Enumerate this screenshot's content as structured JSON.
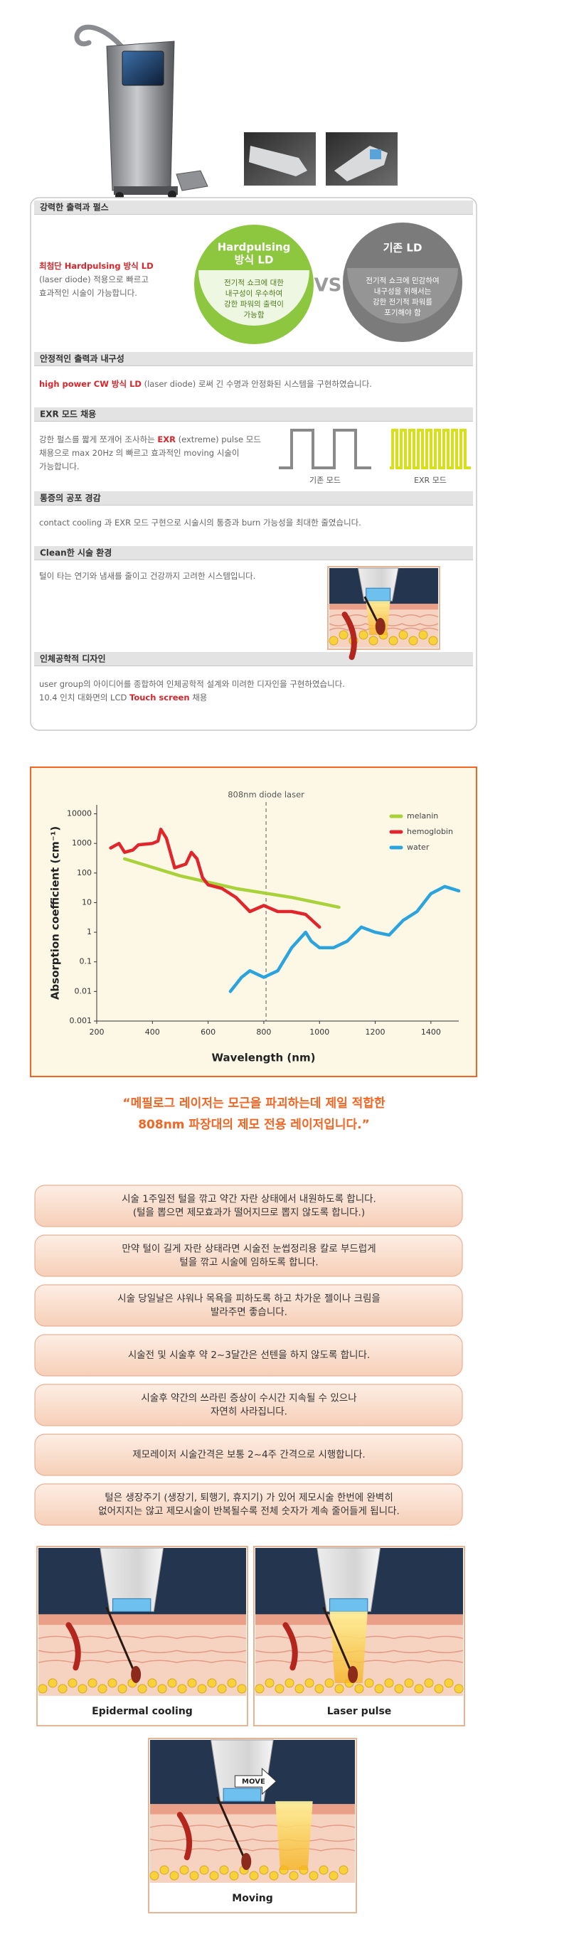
{
  "features": {
    "sections": [
      {
        "heading": "강력한 출력과 펄스",
        "lines": [
          [
            {
              "text": "최첨단  Hardpulsing 방식 LD",
              "color": "#d7262b"
            }
          ],
          [
            {
              "text": "(laser diode) 적용으로 빠르고"
            }
          ],
          [
            {
              "text": "효과적인 시술이 가능합니다."
            }
          ]
        ]
      },
      {
        "heading": "안정적인 출력과 내구성",
        "lines": [
          [
            {
              "text": "high power CW 방식 LD",
              "color": "#d7262b"
            },
            {
              "text": " (laser diode) 로써 긴 수명과 안정화된 시스템을 구현하였습니다."
            }
          ]
        ]
      },
      {
        "heading": "EXR 모드 채용",
        "lines": [
          [
            {
              "text": "강한 펄스를 짧게 쪼개어 조사하는 "
            },
            {
              "text": "EXR",
              "color": "#d7262b"
            },
            {
              "text": " (extreme) pulse 모드"
            }
          ],
          [
            {
              "text": "채용으로 max 20Hz 의 빠르고 효과적인 moving 시술이"
            }
          ],
          [
            {
              "text": "가능합니다."
            }
          ]
        ]
      },
      {
        "heading": "통증의 공포 경감",
        "lines": [
          [
            {
              "text": "contact cooling 과 EXR 모드 구현으로 시술시의 통증과 burn 가능성을 최대한 줄였습니다."
            }
          ]
        ]
      },
      {
        "heading": "Clean한 시술 환경",
        "lines": [
          [
            {
              "text": "털이 타는 연기와 냄새를 줄이고 건강까지 고려한 시스템입니다."
            }
          ]
        ]
      },
      {
        "heading": "인체공학적 디자인",
        "lines": [
          [
            {
              "text": "user group의 아이디어를 종합하여 인체공학적 설계와 미려한 디자인을 구현하였습니다."
            }
          ],
          [
            {
              "text": "10.4 인치 대화면의 LCD "
            },
            {
              "text": "Touch screen",
              "color": "#d7262b"
            },
            {
              "text": " 채용"
            }
          ]
        ]
      }
    ]
  },
  "comparison": {
    "left": {
      "title": [
        "Hardpulsing",
        "방식 LD"
      ],
      "body": [
        "전기적 쇼크에 대한",
        "내구성이 우수하여",
        "강한 파워의 출력이",
        "가능함"
      ],
      "color": "#8dc63f"
    },
    "vs": "VS",
    "right": {
      "title": [
        "기존 LD"
      ],
      "body": [
        "전기적 쇼크에 민감하여",
        "내구성을 위해서는",
        "강한 전기적 파워를",
        "포기해야 함"
      ],
      "color": "#7b7b7b"
    }
  },
  "modes": {
    "standard": "기존 모드",
    "exr": "EXR 모드"
  },
  "chart_data": {
    "type": "line",
    "xlabel": "Wavelength (nm)",
    "ylabel": "Absorption coefficient (cm⁻¹)",
    "annotation": {
      "value": 808,
      "label": "808nm diode laser"
    },
    "log_y": true,
    "grid": false,
    "legend": "upper right",
    "xlim": [
      200,
      1500
    ],
    "xticks": [
      200,
      400,
      600,
      800,
      1000,
      1200,
      1400
    ],
    "ylim": [
      0.001,
      20000
    ],
    "yticks": [
      0.001,
      0.01,
      0.1,
      1,
      10,
      100,
      1000,
      10000
    ],
    "series": [
      {
        "name": "melanin",
        "color": "#a8d13a",
        "x": [
          300,
          500,
          700,
          900,
          1070
        ],
        "values": [
          300,
          80,
          30,
          15,
          7
        ]
      },
      {
        "name": "hemoglobin",
        "color": "#e0262d",
        "x": [
          250,
          280,
          300,
          330,
          350,
          400,
          420,
          430,
          450,
          480,
          520,
          540,
          560,
          580,
          600,
          650,
          700,
          750,
          800,
          850,
          900,
          950,
          1000
        ],
        "values": [
          700,
          1000,
          500,
          600,
          900,
          1000,
          1200,
          3000,
          1500,
          150,
          200,
          500,
          300,
          70,
          40,
          30,
          15,
          5,
          8,
          5,
          5,
          4,
          1.5
        ]
      },
      {
        "name": "water",
        "color": "#2ba3dc",
        "x": [
          680,
          720,
          750,
          800,
          850,
          900,
          950,
          970,
          1000,
          1050,
          1100,
          1150,
          1200,
          1250,
          1300,
          1350,
          1400,
          1450,
          1500
        ],
        "values": [
          0.01,
          0.03,
          0.05,
          0.03,
          0.05,
          0.3,
          1,
          0.5,
          0.3,
          0.3,
          0.5,
          1.5,
          1,
          0.8,
          2.5,
          5,
          20,
          35,
          25
        ]
      }
    ]
  },
  "quote": [
    "“메필로그 레이저는 모근을 파괴하는데 제일 적합한",
    "808nm 파장대의 제모 전용 레이저입니다.”"
  ],
  "tips": [
    [
      "시술 1주일전 털을 깎고 약간 자란 상태에서 내원하도록 합니다.",
      "(털을 뽑으면 제모효과가 떨어지므로 뽑지 않도록 합니다.)"
    ],
    [
      "만약 털이 길게 자란 상태라면 시술전 눈썹정리용 칼로 부드럽게",
      "털을 깎고 시술에 임하도록 합니다."
    ],
    [
      "시술 당일날은 샤워나 목욕을 피하도록 하고 차가운 젤이나 크림을",
      "발라주면 좋습니다."
    ],
    [
      "시술전 및 시술후 약 2~3달간은  선텐을 하지 않도록 합니다."
    ],
    [
      "시술후 약간의 쓰라린 증상이 수시간 지속될 수 있으나",
      "자연히 사라집니다."
    ],
    [
      "제모레이저 시술간격은 보통 2~4주 간격으로 시행합니다."
    ],
    [
      "털은 생장주기 (생장기, 퇴행기, 휴지기) 가 있어 제모시술 한번에 완벽히",
      "없어지지는 않고 제모시술이 반복될수록 전체 숫자가 계속 줄어들게 됩니다."
    ]
  ],
  "illustrations": {
    "captions": [
      "Epidermal cooling",
      "Laser pulse",
      "Moving"
    ],
    "move_label": "MOVE"
  }
}
